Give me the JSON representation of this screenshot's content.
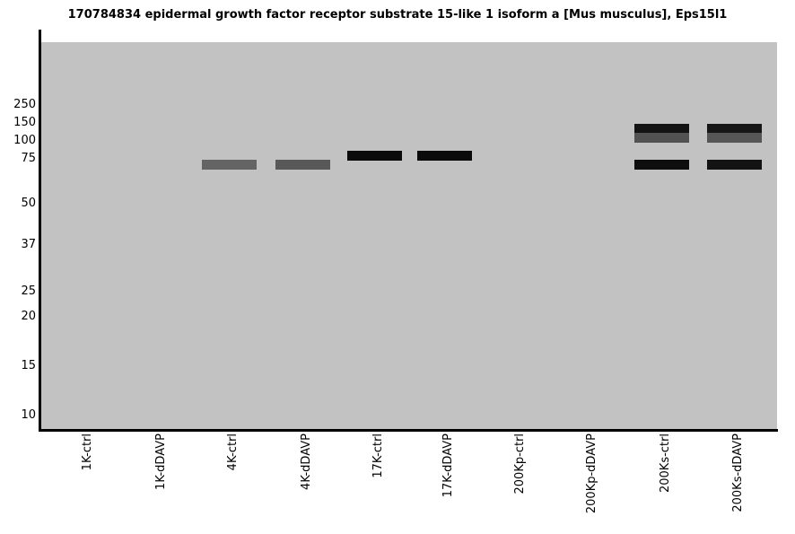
{
  "title": "170784834 epidermal growth factor receptor substrate 15-like 1 isoform a [Mus musculus], Eps15l1",
  "colors": {
    "page_background": "#ffffff",
    "plot_background": "#c2c2c2",
    "axis": "#000000"
  },
  "chart_data": {
    "type": "heatmap",
    "subtype": "western-blot",
    "title": "170784834 epidermal growth factor receptor substrate 15-like 1 isoform a [Mus musculus], Eps15l1",
    "xlabel": "",
    "ylabel": "",
    "legend": "none",
    "grid": false,
    "mw_ladder_kda": [
      250,
      150,
      100,
      75,
      50,
      37,
      25,
      20,
      15,
      10
    ],
    "lanes": [
      "1K-ctrl",
      "1K-dDAVP",
      "4K-ctrl",
      "4K-dDAVP",
      "17K-ctrl",
      "17K-dDAVP",
      "200Kp-ctrl",
      "200Kp-dDAVP",
      "200Ks-ctrl",
      "200Ks-dDAVP"
    ],
    "bands": [
      {
        "lane": "4K-ctrl",
        "lane_index": 2,
        "kda": 72,
        "intensity": "medium",
        "color": "#646464"
      },
      {
        "lane": "4K-dDAVP",
        "lane_index": 3,
        "kda": 72,
        "intensity": "medium",
        "color": "#585858"
      },
      {
        "lane": "17K-ctrl",
        "lane_index": 4,
        "kda": 80,
        "intensity": "strong",
        "color": "#0b0b0b"
      },
      {
        "lane": "17K-dDAVP",
        "lane_index": 5,
        "kda": 80,
        "intensity": "strong",
        "color": "#0b0b0b"
      },
      {
        "lane": "200Ks-ctrl",
        "lane_index": 8,
        "kda": 135,
        "intensity": "strong",
        "color": "#131313"
      },
      {
        "lane": "200Ks-ctrl",
        "lane_index": 8,
        "kda": 110,
        "intensity": "medium",
        "color": "#525252"
      },
      {
        "lane": "200Ks-ctrl",
        "lane_index": 8,
        "kda": 72,
        "intensity": "strong",
        "color": "#0e0e0e"
      },
      {
        "lane": "200Ks-dDAVP",
        "lane_index": 9,
        "kda": 135,
        "intensity": "strong",
        "color": "#161616"
      },
      {
        "lane": "200Ks-dDAVP",
        "lane_index": 9,
        "kda": 110,
        "intensity": "medium",
        "color": "#565656"
      },
      {
        "lane": "200Ks-dDAVP",
        "lane_index": 9,
        "kda": 72,
        "intensity": "strong",
        "color": "#131313"
      }
    ]
  }
}
